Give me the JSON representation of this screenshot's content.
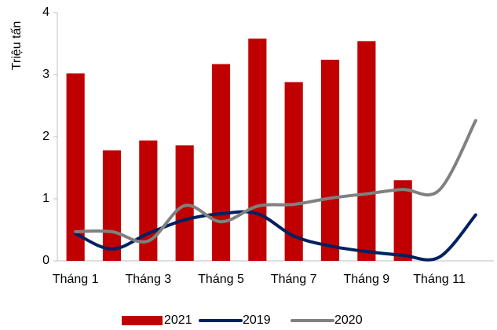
{
  "chart_data": {
    "type": "bar",
    "y_label": "Triệu tấn",
    "categories": [
      "Tháng 1",
      null,
      "Tháng 3",
      null,
      "Tháng 5",
      null,
      "Tháng 7",
      null,
      "Tháng 9",
      null,
      "Tháng 11",
      null
    ],
    "series": [
      {
        "name": "2021",
        "type": "bar",
        "color": "#c00000",
        "values": [
          3.02,
          1.78,
          1.94,
          1.86,
          3.17,
          3.58,
          2.88,
          3.24,
          3.54,
          1.3,
          null,
          null
        ]
      },
      {
        "name": "2019",
        "type": "line",
        "color": "#002060",
        "values": [
          0.44,
          0.19,
          0.44,
          0.66,
          0.76,
          0.76,
          0.4,
          0.24,
          0.15,
          0.09,
          0.06,
          0.74
        ]
      },
      {
        "name": "2020",
        "type": "line",
        "color": "#808080",
        "values": [
          0.47,
          0.47,
          0.32,
          0.89,
          0.63,
          0.88,
          0.91,
          1.01,
          1.08,
          1.15,
          1.14,
          2.26
        ]
      }
    ],
    "ylim": [
      0,
      4
    ],
    "yticks": [
      0,
      1,
      2,
      3,
      4
    ],
    "legend": "bottom"
  }
}
